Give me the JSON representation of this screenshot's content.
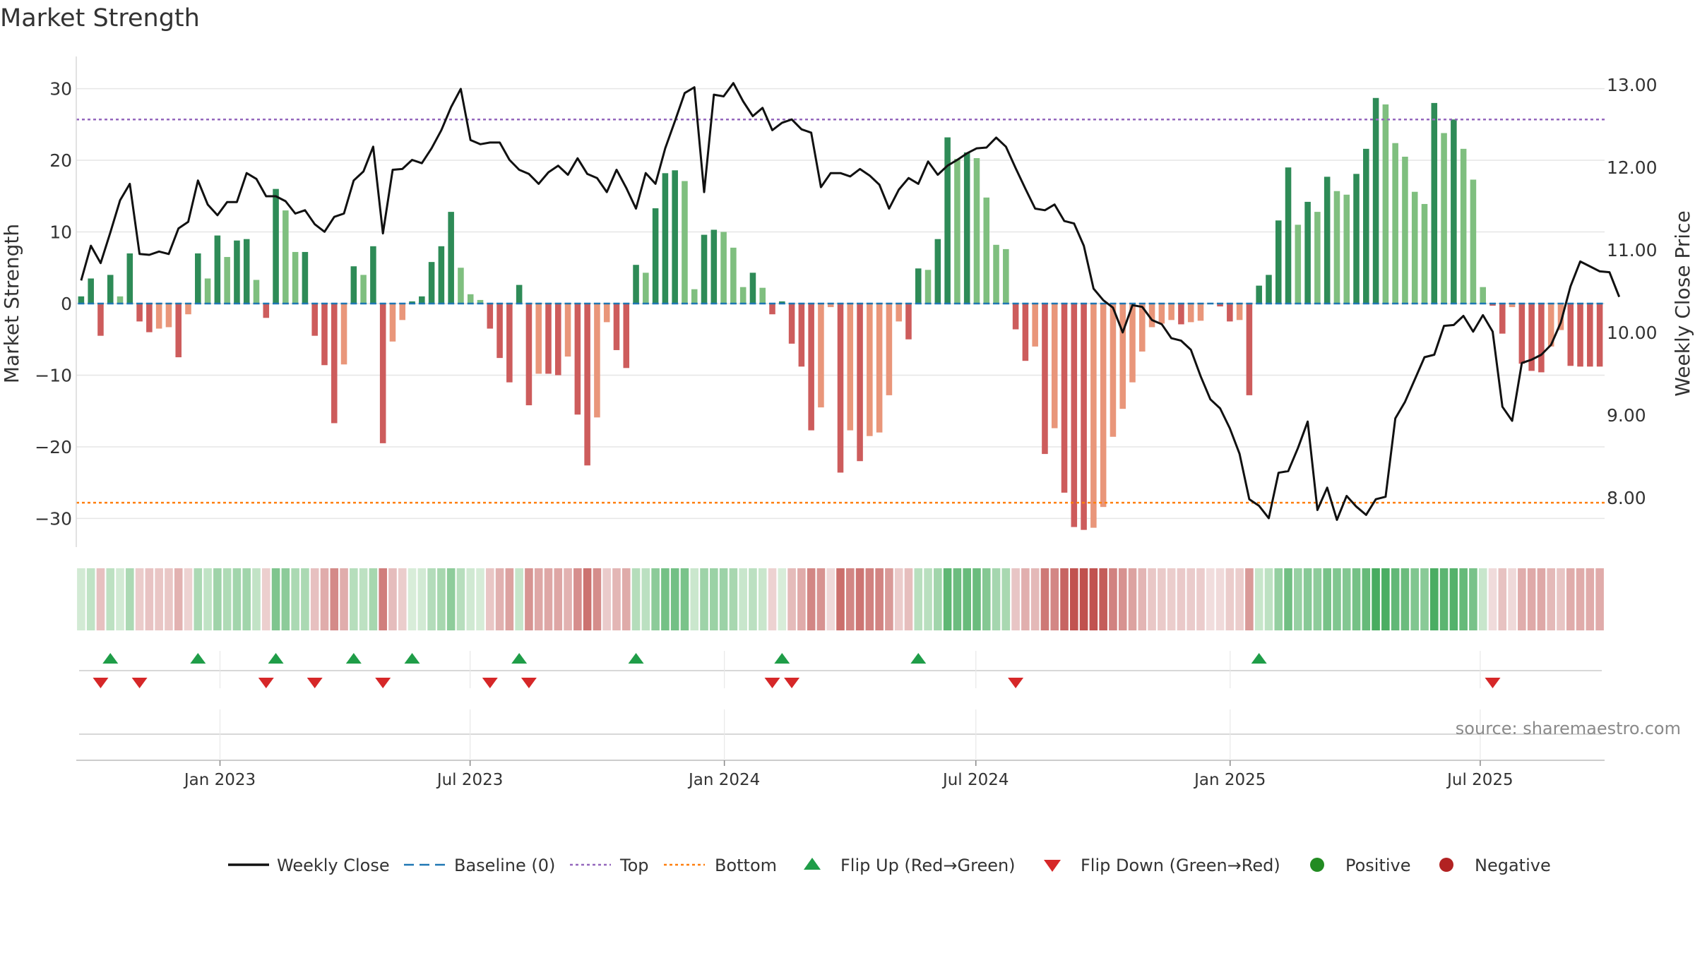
{
  "chart_data": {
    "type": "bar",
    "title": "Market Strength",
    "source": "source: sharemaestro.com",
    "ylabel_left": "Market Strength",
    "ylabel_right": "Weekly Close Price",
    "ylim_left": [
      -34,
      34
    ],
    "ylim_right": [
      7.4,
      13.3
    ],
    "left_ticks": [
      30,
      20,
      10,
      0,
      -10,
      -20,
      -30
    ],
    "left_tick_labels": [
      "30",
      "20",
      "10",
      "0",
      "−10",
      "−20",
      "−30"
    ],
    "right_ticks": [
      13,
      12,
      11,
      10,
      9,
      8
    ],
    "right_tick_labels": [
      "13.00",
      "12.00",
      "11.00",
      "10.00",
      "9.00",
      "8.00"
    ],
    "top_level": 25.7,
    "bottom_level": -27.8,
    "x_start": "2022-09-19",
    "x_end": "2025-09-29",
    "x_tick_dates": [
      "2023-01-01",
      "2023-07-01",
      "2024-01-01",
      "2024-07-01",
      "2025-01-01",
      "2025-07-01"
    ],
    "x_tick_labels": [
      "Jan 2023",
      "Jul 2023",
      "Jan 2024",
      "Jul 2024",
      "Jan 2025",
      "Jul 2025"
    ],
    "strength": [
      1,
      3.5,
      -4.5,
      4,
      1,
      7,
      -2.5,
      -4,
      -3.5,
      -3.3,
      -7.5,
      -1.5,
      7,
      3.5,
      9.5,
      6.5,
      8.8,
      9,
      3.3,
      -2,
      16,
      13,
      7.2,
      7.2,
      -4.5,
      -8.6,
      -16.7,
      -8.5,
      5.2,
      4,
      8,
      -19.5,
      -5.3,
      -2.3,
      0.3,
      1,
      5.8,
      8,
      12.8,
      5,
      1.3,
      0.5,
      -3.5,
      -7.6,
      -11,
      2.6,
      -14.2,
      -9.8,
      -9.8,
      -10,
      -7.4,
      -15.5,
      -22.6,
      -15.9,
      -2.6,
      -6.5,
      -9,
      5.4,
      4.3,
      13.3,
      18.2,
      18.6,
      17.1,
      2,
      9.6,
      10.3,
      10,
      7.8,
      2.3,
      4.3,
      2.2,
      -1.5,
      0.3,
      -5.6,
      -8.8,
      -17.7,
      -14.5,
      -0.5,
      -23.6,
      -17.7,
      -22,
      -18.5,
      -18,
      -12.8,
      -2.5,
      -5,
      4.9,
      4.7,
      9,
      23.2,
      20.2,
      21.1,
      20.3,
      14.8,
      8.2,
      7.6,
      -3.6,
      -8,
      -6,
      -21,
      -17.4,
      -26.4,
      -31.2,
      -31.6,
      -31.3,
      -28.4,
      -18.6,
      -14.7,
      -11,
      -6.7,
      -3.3,
      -2.8,
      -2.3,
      -2.9,
      -2.6,
      -2.4,
      -0.1,
      -0.4,
      -2.5,
      -2.3,
      -12.8,
      2.5,
      4,
      11.6,
      19,
      11,
      14.2,
      12.8,
      17.7,
      15.7,
      15.2,
      18.1,
      21.6,
      28.7,
      27.8,
      22.4,
      20.5,
      15.6,
      13.9,
      28,
      23.8,
      25.7,
      21.6,
      17.3,
      2.3,
      -0.3,
      -4.2,
      -0.5,
      -8.4,
      -9.4,
      -9.6,
      -6,
      -3.7,
      -8.7,
      -8.8,
      -8.8,
      -8.8
    ],
    "weekly_close": [
      10.63,
      11.05,
      10.84,
      11.21,
      11.6,
      11.8,
      10.95,
      10.94,
      10.98,
      10.95,
      11.26,
      11.34,
      11.84,
      11.55,
      11.42,
      11.58,
      11.58,
      11.93,
      11.86,
      11.65,
      11.65,
      11.59,
      11.44,
      11.48,
      11.31,
      11.22,
      11.4,
      11.44,
      11.84,
      11.95,
      12.25,
      11.2,
      11.97,
      11.98,
      12.09,
      12.05,
      12.23,
      12.45,
      12.73,
      12.95,
      12.33,
      12.28,
      12.3,
      12.3,
      12.09,
      11.97,
      11.92,
      11.8,
      11.94,
      12.02,
      11.91,
      12.11,
      11.92,
      11.87,
      11.7,
      11.97,
      11.75,
      11.5,
      11.93,
      11.8,
      12.23,
      12.56,
      12.9,
      12.97,
      11.7,
      12.88,
      12.86,
      13.02,
      12.8,
      12.62,
      12.72,
      12.45,
      12.54,
      12.58,
      12.46,
      12.42,
      11.76,
      11.93,
      11.93,
      11.89,
      11.98,
      11.9,
      11.79,
      11.5,
      11.73,
      11.87,
      11.8,
      12.07,
      11.91,
      12.02,
      12.09,
      12.17,
      12.23,
      12.24,
      12.36,
      12.25,
      11.99,
      11.74,
      11.5,
      11.48,
      11.55,
      11.35,
      11.32,
      11.05,
      10.53,
      10.39,
      10.3,
      10.0,
      10.33,
      10.31,
      10.15,
      10.1,
      9.93,
      9.9,
      9.79,
      9.47,
      9.19,
      9.08,
      8.84,
      8.53,
      7.98,
      7.9,
      7.75,
      8.3,
      8.32,
      8.6,
      8.92,
      7.85,
      8.12,
      7.73,
      8.02,
      7.89,
      7.79,
      7.98,
      8.01,
      8.96,
      9.16,
      9.43,
      9.7,
      9.73,
      10.08,
      10.09,
      10.2,
      10.01,
      10.21,
      10.01,
      9.1,
      8.93,
      9.63,
      9.67,
      9.73,
      9.85,
      10.12,
      10.56,
      10.86,
      10.8,
      10.74,
      10.73,
      10.43
    ],
    "colors": {
      "strong_pos": "#2e8b57",
      "weak_pos": "#7fbf7f",
      "strong_neg": "#cd5c5c",
      "weak_neg": "#e9967a",
      "close_line": "#111111",
      "baseline": "#1f77b4",
      "top": "#9467bd",
      "bottom": "#ff7f0e",
      "flip_up": "#1f9d48",
      "flip_down": "#d62728",
      "positive_dot": "#228b22",
      "negative_dot": "#b22222"
    },
    "legend": [
      "Weekly Close",
      "Baseline (0)",
      "Top",
      "Bottom",
      "Flip Up (Red→Green)",
      "Flip Down (Green→Red)",
      "Positive",
      "Negative"
    ]
  }
}
